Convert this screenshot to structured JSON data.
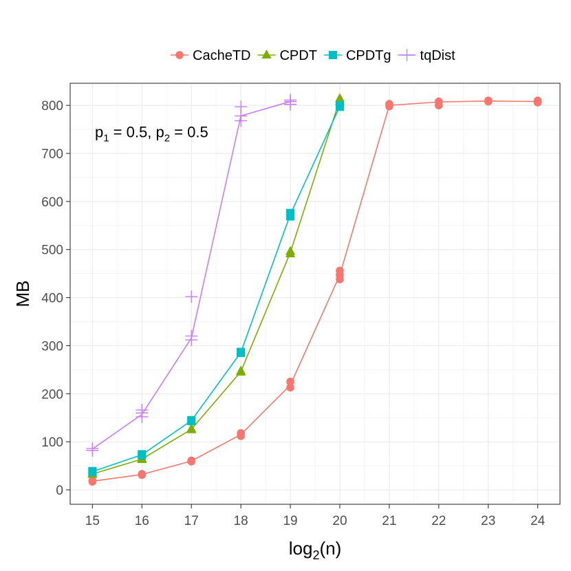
{
  "chart_data": {
    "type": "line",
    "xlabel": "log2(n)",
    "ylabel": "MB",
    "xlim": [
      14.55,
      24.45
    ],
    "ylim": [
      -30,
      846
    ],
    "x_ticks": [
      15,
      16,
      17,
      18,
      19,
      20,
      21,
      22,
      23,
      24
    ],
    "y_ticks": [
      0,
      100,
      200,
      300,
      400,
      500,
      600,
      700,
      800
    ],
    "grid": true,
    "legend_position": "top",
    "annotation": {
      "p1_label": "p",
      "p1_sub": "1",
      "p1_value": " = 0.5,",
      "p2_label": "p",
      "p2_sub": "2",
      "p2_value": " = 0.5",
      "x": 15.05,
      "y": 745
    },
    "series": [
      {
        "name": "CacheTD",
        "color": "#F8766D",
        "marker": "circle",
        "x": [
          15,
          16,
          17,
          18,
          19,
          20,
          21,
          22,
          23,
          24
        ],
        "y": [
          18,
          32,
          60,
          115,
          218,
          447,
          800,
          807,
          809,
          808
        ],
        "points": [
          [
            15,
            17
          ],
          [
            15,
            19
          ],
          [
            16,
            31
          ],
          [
            16,
            33
          ],
          [
            17,
            59
          ],
          [
            17,
            61
          ],
          [
            18,
            112
          ],
          [
            18,
            118
          ],
          [
            19,
            213
          ],
          [
            19,
            225
          ],
          [
            20,
            438
          ],
          [
            20,
            447
          ],
          [
            20,
            456
          ],
          [
            21,
            798
          ],
          [
            21,
            803
          ],
          [
            22,
            800
          ],
          [
            22,
            808
          ],
          [
            23,
            808
          ],
          [
            23,
            810
          ],
          [
            24,
            806
          ],
          [
            24,
            810
          ]
        ]
      },
      {
        "name": "CPDT",
        "color": "#7CAE00",
        "marker": "triangle",
        "x": [
          15,
          16,
          17,
          18,
          19,
          20
        ],
        "y": [
          33,
          64,
          126,
          246,
          494,
          812
        ],
        "points": [
          [
            15,
            32
          ],
          [
            15,
            34
          ],
          [
            16,
            63
          ],
          [
            16,
            65
          ],
          [
            17,
            125
          ],
          [
            17,
            127
          ],
          [
            18,
            245
          ],
          [
            18,
            247
          ],
          [
            19,
            491
          ],
          [
            19,
            496
          ],
          [
            20,
            808
          ],
          [
            20,
            814
          ]
        ]
      },
      {
        "name": "CPDTg",
        "color": "#00BFC4",
        "marker": "square",
        "x": [
          15,
          16,
          17,
          18,
          19,
          20
        ],
        "y": [
          38,
          73,
          144,
          286,
          573,
          798
        ],
        "points": [
          [
            15,
            37
          ],
          [
            15,
            39
          ],
          [
            16,
            72
          ],
          [
            16,
            74
          ],
          [
            17,
            143
          ],
          [
            17,
            145
          ],
          [
            18,
            285
          ],
          [
            18,
            287
          ],
          [
            19,
            569
          ],
          [
            19,
            576
          ],
          [
            20,
            797
          ],
          [
            20,
            800
          ]
        ]
      },
      {
        "name": "tqDist",
        "color": "#C77CFF",
        "marker": "plus",
        "x": [
          15,
          16,
          17,
          18,
          19
        ],
        "y": [
          85,
          157,
          316,
          778,
          808
        ],
        "points": [
          [
            15,
            82
          ],
          [
            15,
            86
          ],
          [
            16,
            152
          ],
          [
            16,
            160
          ],
          [
            16,
            166
          ],
          [
            17,
            312
          ],
          [
            17,
            320
          ],
          [
            17,
            402
          ],
          [
            18,
            768
          ],
          [
            18,
            778
          ],
          [
            18,
            797
          ],
          [
            19,
            802
          ],
          [
            19,
            808
          ],
          [
            19,
            811
          ]
        ]
      }
    ]
  }
}
